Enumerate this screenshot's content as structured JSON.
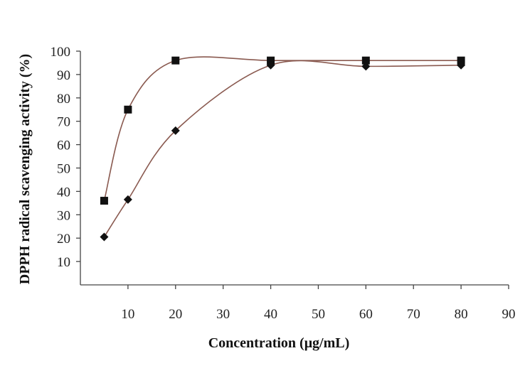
{
  "chart_data": {
    "type": "line",
    "title": "",
    "xlabel": "Concentration (μg/mL)",
    "ylabel": "DPPH radical scavenging activity (%)",
    "xlim": [
      0,
      90
    ],
    "ylim": [
      0,
      100
    ],
    "xticks": [
      10,
      20,
      30,
      40,
      50,
      60,
      70,
      80,
      90
    ],
    "yticks": [
      10,
      20,
      30,
      40,
      50,
      60,
      70,
      80,
      90,
      100
    ],
    "grid": false,
    "legend": "none",
    "line_color": "#8a5a50",
    "marker_color": "#111111",
    "series": [
      {
        "marker": "square",
        "x": [
          5,
          10,
          20,
          40,
          60,
          80
        ],
        "y": [
          36,
          75,
          96,
          96,
          96,
          96
        ]
      },
      {
        "marker": "diamond",
        "x": [
          5,
          10,
          20,
          40,
          60,
          80
        ],
        "y": [
          20.5,
          36.5,
          66,
          94,
          93.5,
          94
        ]
      }
    ]
  }
}
